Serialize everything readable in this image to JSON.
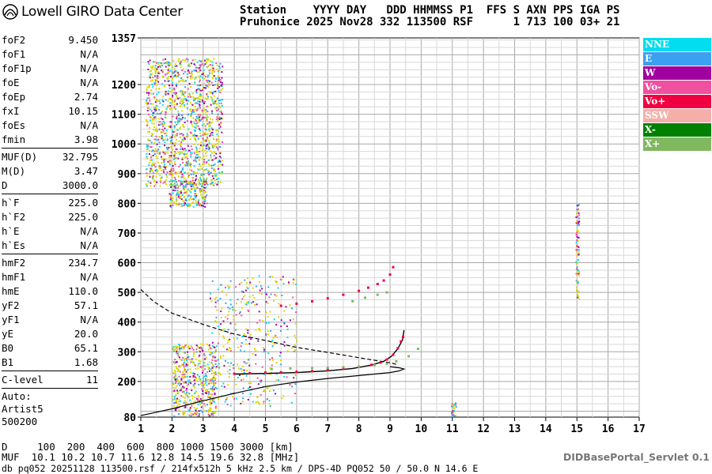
{
  "logo": {
    "text": "Lowell GIRO Data Center",
    "icon": "digisonde-logo-icon"
  },
  "header": {
    "line1": "Station    YYYY DAY   DDD HHMMSS P1  FFS S AXN PPS IGA PS",
    "line2": "Pruhonice 2025 Nov28 332 113500 RSF      1 713 100 03+ 21"
  },
  "params": [
    [
      {
        "name": "foF2",
        "value": "9.450"
      },
      {
        "name": "foF1",
        "value": "N/A"
      },
      {
        "name": "foF1p",
        "value": "N/A"
      },
      {
        "name": "foE",
        "value": "N/A"
      },
      {
        "name": "foEp",
        "value": "2.74"
      },
      {
        "name": "fxI",
        "value": "10.15"
      },
      {
        "name": "foEs",
        "value": "N/A"
      },
      {
        "name": "fmin",
        "value": "3.98"
      }
    ],
    [
      {
        "name": "MUF(D)",
        "value": "32.795"
      },
      {
        "name": "M(D)",
        "value": "3.47"
      },
      {
        "name": "D",
        "value": "3000.0"
      }
    ],
    [
      {
        "name": "h`F",
        "value": "225.0"
      },
      {
        "name": "h`F2",
        "value": "225.0"
      },
      {
        "name": "h`E",
        "value": "N/A"
      },
      {
        "name": "h`Es",
        "value": "N/A"
      }
    ],
    [
      {
        "name": "hmF2",
        "value": "234.7"
      },
      {
        "name": "hmF1",
        "value": "N/A"
      },
      {
        "name": "hmE",
        "value": "110.0"
      },
      {
        "name": "yF2",
        "value": "57.1"
      },
      {
        "name": "yF1",
        "value": "N/A"
      },
      {
        "name": "yE",
        "value": "20.0"
      },
      {
        "name": "B0",
        "value": "65.1"
      },
      {
        "name": "B1",
        "value": "1.68"
      }
    ],
    [
      {
        "name": "C-level",
        "value": "11"
      }
    ]
  ],
  "auto": {
    "line1": "Auto:",
    "line2": "Artist5",
    "line3": "500200"
  },
  "legend": [
    {
      "label": "NNE",
      "color": "#00dcf0"
    },
    {
      "label": "E",
      "color": "#3ca0f0"
    },
    {
      "label": "W",
      "color": "#a000a0"
    },
    {
      "label": "Vo-",
      "color": "#f050a0"
    },
    {
      "label": "Vo+",
      "color": "#f00040"
    },
    {
      "label": "SSW",
      "color": "#f4b0a8"
    },
    {
      "label": "X-",
      "color": "#008000"
    },
    {
      "label": "X+",
      "color": "#80b860"
    }
  ],
  "footer": {
    "d_line": "D     100  200  400  600  800 1000 1500 3000 [km]",
    "muf_line": "MUF  10.1 10.2 10.7 11.6 12.8 14.5 19.6 32.8 [MHz]",
    "db_line": "db pq052 20251128 113500.rsf / 214fx512h 5 kHz 2.5 km / DPS-4D PQ052 50 / 50.0 N 14.6 E",
    "servlet": "DIDBasePortal_Servlet 0.1"
  },
  "chart_data": {
    "type": "scatter",
    "x_ticks": [
      "1",
      "2",
      "3",
      "4",
      "5",
      "6",
      "7",
      "8",
      "9",
      "10",
      "11",
      "12",
      "13",
      "14",
      "15",
      "16",
      "17"
    ],
    "y_ticks": [
      "80",
      "200",
      "300",
      "400",
      "500",
      "600",
      "700",
      "800",
      "900",
      "1000",
      "1100",
      "1200",
      "1357"
    ],
    "xlim": [
      1,
      17
    ],
    "ylim": [
      80,
      1357
    ],
    "grid": true,
    "lines": {
      "o_trace_model": [
        [
          4.0,
          225
        ],
        [
          5.0,
          227
        ],
        [
          6.0,
          230
        ],
        [
          7.0,
          236
        ],
        [
          7.8,
          244
        ],
        [
          8.4,
          255
        ],
        [
          8.8,
          268
        ],
        [
          9.05,
          285
        ],
        [
          9.25,
          310
        ],
        [
          9.4,
          340
        ],
        [
          9.45,
          373
        ]
      ],
      "profile_dashed": [
        [
          1.0,
          510
        ],
        [
          1.4,
          470
        ],
        [
          2.0,
          430
        ],
        [
          3.0,
          392
        ],
        [
          4.0,
          360
        ],
        [
          5.0,
          338
        ],
        [
          6.0,
          315
        ],
        [
          7.0,
          298
        ],
        [
          8.0,
          280
        ],
        [
          9.0,
          263
        ],
        [
          9.2,
          258
        ]
      ],
      "profile_solid": [
        [
          1.0,
          85
        ],
        [
          2.0,
          108
        ],
        [
          3.0,
          135
        ],
        [
          4.0,
          160
        ],
        [
          5.0,
          183
        ],
        [
          6.0,
          198
        ],
        [
          7.0,
          210
        ],
        [
          8.0,
          220
        ],
        [
          9.0,
          230
        ],
        [
          9.3,
          236
        ],
        [
          9.45,
          242
        ],
        [
          9.3,
          246
        ],
        [
          9.0,
          250
        ]
      ]
    },
    "traces": [
      {
        "name": "Vo+",
        "points": [
          [
            4.0,
            226
          ],
          [
            4.5,
            228
          ],
          [
            5.0,
            230
          ],
          [
            5.5,
            231
          ],
          [
            6.0,
            233
          ],
          [
            6.5,
            235
          ],
          [
            7.0,
            239
          ],
          [
            7.5,
            243
          ],
          [
            8.0,
            249
          ],
          [
            8.4,
            256
          ],
          [
            8.7,
            264
          ],
          [
            8.9,
            274
          ],
          [
            9.1,
            290
          ],
          [
            9.25,
            312
          ],
          [
            9.35,
            335
          ],
          [
            9.42,
            350
          ]
        ]
      },
      {
        "name": "Vo+",
        "points": [
          [
            5.5,
            455
          ],
          [
            6.0,
            462
          ],
          [
            6.5,
            470
          ],
          [
            7.0,
            480
          ],
          [
            7.5,
            492
          ],
          [
            8.0,
            505
          ],
          [
            8.3,
            516
          ],
          [
            8.6,
            528
          ],
          [
            8.8,
            540
          ],
          [
            9.0,
            560
          ],
          [
            9.1,
            585
          ]
        ]
      },
      {
        "name": "X+",
        "points": [
          [
            5.2,
            242
          ],
          [
            5.8,
            244
          ],
          [
            6.5,
            245
          ],
          [
            7.0,
            246
          ],
          [
            7.5,
            248
          ],
          [
            8.0,
            250
          ],
          [
            8.5,
            255
          ],
          [
            8.9,
            260
          ],
          [
            9.2,
            268
          ],
          [
            9.6,
            285
          ],
          [
            9.9,
            310
          ]
        ]
      },
      {
        "name": "X+",
        "points": [
          [
            7.8,
            470
          ],
          [
            8.2,
            482
          ],
          [
            8.6,
            492
          ],
          [
            8.9,
            500
          ]
        ]
      }
    ]
  }
}
